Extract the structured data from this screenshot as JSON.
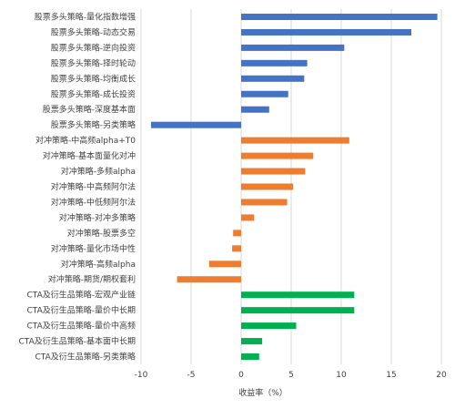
{
  "chart_data": {
    "type": "bar",
    "orientation": "horizontal",
    "xlabel": "收益率（%）",
    "ylabel": "",
    "title": "",
    "xlim": [
      -10,
      20
    ],
    "xticks": [
      -10,
      -5,
      0,
      5,
      10,
      15,
      20
    ],
    "grid": "vertical",
    "legend": "none",
    "categories": [
      "股票多头策略-量化指数增强",
      "股票多头策略-动态交易",
      "股票多头策略-逆向投资",
      "股票多头策略-择时轮动",
      "股票多头策略-均衡成长",
      "股票多头策略-成长投资",
      "股票多头策略-深度基本面",
      "股票多头策略-另类策略",
      "对冲策略-中高频alpha+T0",
      "对冲策略-基本面量化对冲",
      "对冲策略-多频alpha",
      "对冲策略-中高频阿尔法",
      "对冲策略-中低频阿尔法",
      "对冲策略-对冲多策略",
      "对冲策略-股票多空",
      "对冲策略-量化市场中性",
      "对冲策略-高频alpha",
      "对冲策略-期货/期权套利",
      "CTA及衍生品策略-宏观产业链",
      "CTA及衍生品策略-量价中长期",
      "CTA及衍生品策略-量价中高频",
      "CTA及衍生品策略-基本面中长期",
      "CTA及衍生品策略-另类策略"
    ],
    "values": [
      19.6,
      17.0,
      10.3,
      6.6,
      6.3,
      4.7,
      2.8,
      -9.0,
      10.8,
      7.2,
      6.4,
      5.2,
      4.6,
      1.3,
      -0.8,
      -0.9,
      -3.2,
      -6.4,
      11.3,
      11.3,
      5.5,
      2.1,
      1.8
    ],
    "groups": [
      0,
      0,
      0,
      0,
      0,
      0,
      0,
      0,
      1,
      1,
      1,
      1,
      1,
      1,
      1,
      1,
      1,
      1,
      2,
      2,
      2,
      2,
      2
    ],
    "colors": [
      "#4472C4",
      "#ED7D31",
      "#00B050"
    ],
    "grid_color": "#D9D9D9"
  }
}
